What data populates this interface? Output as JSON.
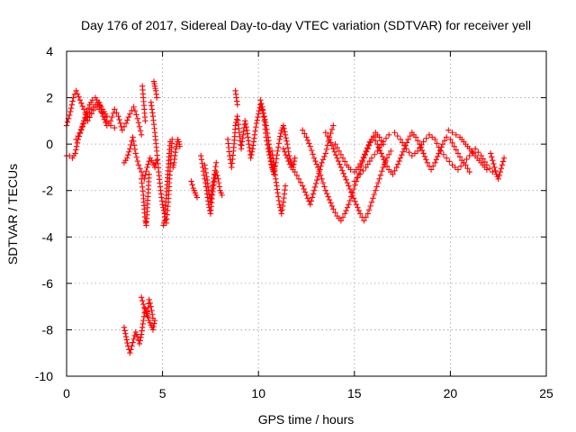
{
  "chart_data": {
    "type": "scatter",
    "title": "Day 176 of 2017, Sidereal Day-to-day VTEC variation (SDTVAR) for receiver yell",
    "xlabel": "GPS time / hours",
    "ylabel": "SDTVAR / TECUs",
    "xlim": [
      0,
      25
    ],
    "ylim": [
      -10,
      4
    ],
    "xticks": [
      0,
      5,
      10,
      15,
      20,
      25
    ],
    "yticks": [
      -10,
      -8,
      -6,
      -4,
      -2,
      0,
      2,
      4
    ],
    "grid": true,
    "marker": "+",
    "color": "#ff0000",
    "series": [
      {
        "name": "SDTVAR",
        "segments": [
          {
            "x": [
              0.0,
              0.2,
              0.35,
              0.5,
              0.7,
              0.9,
              1.1,
              1.3,
              1.5,
              1.7,
              1.9,
              2.1,
              2.3,
              2.5,
              2.7,
              2.9,
              3.1,
              3.3,
              3.5,
              3.7,
              3.9
            ],
            "y": [
              0.8,
              1.4,
              2.0,
              2.3,
              1.9,
              1.5,
              1.0,
              1.3,
              1.6,
              1.8,
              1.2,
              0.8,
              1.0,
              1.5,
              1.2,
              0.6,
              0.9,
              1.3,
              1.6,
              1.1,
              0.4
            ]
          },
          {
            "x": [
              0.0,
              0.15,
              0.3,
              0.45,
              0.6,
              0.75,
              0.9,
              1.05,
              1.2,
              1.35,
              1.5,
              1.65,
              1.8,
              1.95,
              2.1
            ],
            "y": [
              -0.5,
              -0.5,
              -0.6,
              -0.4,
              0.2,
              0.6,
              1.0,
              1.4,
              1.7,
              1.9,
              2.0,
              1.8,
              1.6,
              1.4,
              1.2
            ]
          },
          {
            "x": [
              0.5,
              0.7,
              0.9,
              1.1,
              1.3,
              1.5,
              1.7,
              1.9,
              2.1,
              2.3,
              2.5
            ],
            "y": [
              0.2,
              0.5,
              0.9,
              1.2,
              1.5,
              1.7,
              1.5,
              1.3,
              1.0,
              0.8,
              0.7
            ]
          },
          {
            "x": [
              3.0,
              3.15,
              3.3,
              3.45,
              3.6,
              3.75,
              3.9,
              4.05,
              4.2,
              4.35,
              4.5,
              4.6,
              4.7
            ],
            "y": [
              -0.8,
              -0.6,
              -0.2,
              0.3,
              -0.4,
              -0.9,
              -1.2,
              -1.5,
              -1.0,
              -0.6,
              -0.8,
              -1.0,
              -0.7
            ]
          },
          {
            "x": [
              3.9,
              4.0,
              4.05,
              4.1,
              4.15,
              4.2,
              4.25,
              4.3
            ],
            "y": [
              -1.5,
              -2.2,
              -2.8,
              -3.3,
              -3.5,
              -2.9,
              -2.1,
              -1.3
            ]
          },
          {
            "x": [
              3.95,
              4.0,
              4.05,
              4.1
            ],
            "y": [
              2.5,
              2.0,
              1.5,
              1.0
            ]
          },
          {
            "x": [
              4.4,
              4.5,
              4.6,
              4.7,
              4.8,
              4.9,
              5.0,
              5.1,
              5.2,
              5.3,
              5.4,
              5.5
            ],
            "y": [
              1.8,
              1.2,
              0.5,
              -0.3,
              -1.2,
              -2.0,
              -2.6,
              -3.0,
              -3.4,
              -2.5,
              -1.0,
              0.2
            ]
          },
          {
            "x": [
              4.55,
              4.6,
              4.65,
              4.7
            ],
            "y": [
              2.7,
              2.5,
              2.3,
              2.0
            ]
          },
          {
            "x": [
              5.05,
              5.1,
              5.15,
              5.2,
              5.25,
              5.3,
              5.35,
              5.4
            ],
            "y": [
              -3.5,
              -3.3,
              -2.8,
              -2.2,
              -1.6,
              -1.0,
              -0.4,
              0.1
            ]
          },
          {
            "x": [
              5.55,
              5.6,
              5.65,
              5.7,
              5.75,
              5.8,
              5.85,
              5.9
            ],
            "y": [
              -1.0,
              -0.8,
              -0.5,
              -0.2,
              0.0,
              0.2,
              0.1,
              -0.1
            ]
          },
          {
            "x": [
              3.0,
              3.1,
              3.2,
              3.3,
              3.4,
              3.5,
              3.6,
              3.7,
              3.8,
              3.9,
              4.0,
              4.1,
              4.2,
              4.3,
              4.4,
              4.5,
              4.6
            ],
            "y": [
              -7.9,
              -8.3,
              -8.7,
              -9.0,
              -8.7,
              -8.4,
              -8.1,
              -8.3,
              -8.6,
              -8.2,
              -7.6,
              -7.1,
              -7.3,
              -7.6,
              -7.8,
              -8.0,
              -7.6
            ]
          },
          {
            "x": [
              3.9,
              4.0,
              4.1,
              4.2,
              4.3,
              4.4,
              4.5
            ],
            "y": [
              -6.6,
              -6.9,
              -7.2,
              -7.4,
              -6.7,
              -7.0,
              -7.5
            ]
          },
          {
            "x": [
              6.5,
              6.6,
              6.7,
              6.8
            ],
            "y": [
              -1.6,
              -1.9,
              -2.1,
              -2.3
            ]
          },
          {
            "x": [
              7.0,
              7.1,
              7.2,
              7.3,
              7.4,
              7.5,
              7.6,
              7.7,
              7.8,
              7.9,
              8.0,
              8.1
            ],
            "y": [
              -0.5,
              -1.0,
              -1.5,
              -2.0,
              -2.6,
              -3.0,
              -2.2,
              -1.6,
              -1.2,
              -1.5,
              -2.0,
              -2.2
            ]
          },
          {
            "x": [
              7.2,
              7.3,
              7.4,
              7.5,
              7.6,
              7.7,
              7.8
            ],
            "y": [
              -0.9,
              -1.4,
              -2.0,
              -2.5,
              -1.8,
              -1.3,
              -0.8
            ]
          },
          {
            "x": [
              8.4,
              8.5,
              8.6,
              8.7,
              8.8,
              8.9,
              9.0,
              9.1,
              9.2,
              9.3,
              9.4,
              9.5,
              9.6,
              9.7,
              9.8,
              9.9,
              10.0,
              10.1,
              10.2,
              10.3,
              10.4,
              10.5,
              10.6,
              10.7,
              10.8,
              10.9,
              11.0,
              11.1,
              11.2,
              11.3,
              11.4,
              11.5,
              11.6,
              11.7,
              11.8,
              11.9
            ],
            "y": [
              0.2,
              -0.5,
              -1.0,
              -0.3,
              0.8,
              1.2,
              0.5,
              -0.2,
              0.4,
              1.0,
              0.6,
              0.0,
              -0.6,
              -0.2,
              0.4,
              0.9,
              1.3,
              1.7,
              1.5,
              1.0,
              0.3,
              -0.2,
              -0.6,
              -1.0,
              -1.2,
              -0.8,
              -0.3,
              0.2,
              0.6,
              0.8,
              0.4,
              0.0,
              -0.5,
              -0.8,
              -1.0,
              -0.6
            ]
          },
          {
            "x": [
              8.8,
              8.85,
              8.9
            ],
            "y": [
              2.3,
              2.0,
              1.7
            ]
          },
          {
            "x": [
              10.1,
              10.2,
              10.3,
              10.4,
              10.5,
              10.6,
              10.7,
              10.8
            ],
            "y": [
              1.9,
              1.6,
              1.2,
              0.8,
              0.3,
              -0.3,
              -0.9,
              -1.3
            ]
          },
          {
            "x": [
              10.7,
              10.8,
              10.9,
              11.0,
              11.1,
              11.2,
              11.3,
              11.4
            ],
            "y": [
              -0.3,
              -0.8,
              -1.5,
              -2.1,
              -2.6,
              -3.0,
              -2.5,
              -1.8
            ]
          },
          {
            "x": [
              11.3,
              11.5,
              11.7,
              11.9,
              12.1,
              12.3,
              12.5,
              12.7,
              12.9,
              13.1,
              13.3,
              13.5,
              13.7,
              13.9
            ],
            "y": [
              -0.2,
              -0.6,
              -1.0,
              -1.2,
              -1.5,
              -1.8,
              -2.2,
              -2.6,
              -2.0,
              -1.4,
              -0.8,
              -0.4,
              0.3,
              0.8
            ]
          },
          {
            "x": [
              12.3,
              12.5,
              12.7,
              12.9,
              13.1,
              13.3,
              13.5,
              13.7,
              13.9,
              14.1,
              14.3,
              14.5,
              14.7,
              14.9,
              15.1,
              15.3,
              15.5,
              15.7,
              15.9,
              16.1,
              16.3,
              16.5
            ],
            "y": [
              0.6,
              0.3,
              -0.1,
              -0.6,
              -1.0,
              -1.5,
              -2.0,
              -2.4,
              -2.8,
              -3.1,
              -3.3,
              -3.0,
              -2.6,
              -2.1,
              -1.6,
              -1.1,
              -0.6,
              -0.2,
              0.2,
              0.5,
              0.3,
              0.0
            ]
          },
          {
            "x": [
              13.5,
              13.7,
              13.9,
              14.1,
              14.3,
              14.5,
              14.7,
              14.9,
              15.1,
              15.3,
              15.5,
              15.7,
              15.9,
              16.1,
              16.3,
              16.5,
              16.7,
              16.9
            ],
            "y": [
              0.5,
              0.2,
              -0.2,
              -0.6,
              -1.0,
              -1.4,
              -1.8,
              -2.2,
              -2.6,
              -3.0,
              -3.3,
              -3.0,
              -2.5,
              -2.0,
              -1.5,
              -1.0,
              -0.6,
              -0.3
            ]
          },
          {
            "x": [
              14.0,
              14.2,
              14.4,
              14.6,
              14.8,
              15.0,
              15.2,
              15.4,
              15.6,
              15.8,
              16.0,
              16.2,
              16.4,
              16.6,
              16.8,
              17.0,
              17.2,
              17.4,
              17.6,
              17.8,
              18.0,
              18.2,
              18.4,
              18.6,
              18.8,
              19.0,
              19.2,
              19.4,
              19.6,
              19.8,
              20.0,
              20.2,
              20.4,
              20.6,
              20.8,
              21.0
            ],
            "y": [
              0.0,
              -0.3,
              -0.6,
              -0.9,
              -1.1,
              -1.2,
              -1.0,
              -0.7,
              -0.3,
              0.1,
              0.3,
              0.0,
              -0.4,
              -0.8,
              -1.1,
              -1.3,
              -1.0,
              -0.6,
              -0.2,
              0.2,
              0.5,
              0.3,
              0.0,
              -0.4,
              -0.8,
              -1.1,
              -0.8,
              -0.4,
              0.0,
              0.3,
              0.2,
              -0.1,
              -0.4,
              -0.7,
              -0.9,
              -1.2
            ]
          },
          {
            "x": [
              15.0,
              15.3,
              15.6,
              15.9,
              16.2,
              16.5,
              16.8,
              17.1,
              17.4,
              17.7,
              18.0,
              18.3,
              18.6,
              18.9,
              19.2,
              19.5,
              19.8,
              20.1,
              20.4,
              20.7,
              21.0,
              21.3,
              21.6,
              21.9,
              22.2
            ],
            "y": [
              -1.6,
              -1.3,
              -1.0,
              -0.6,
              -0.3,
              0.1,
              0.4,
              0.5,
              0.2,
              -0.2,
              -0.5,
              -0.3,
              0.1,
              0.4,
              0.2,
              -0.3,
              -0.6,
              -0.9,
              -1.1,
              -0.8,
              -0.5,
              -0.2,
              -0.5,
              -0.9,
              -1.2
            ]
          },
          {
            "x": [
              19.9,
              20.1,
              20.3,
              20.5,
              20.7,
              20.9,
              21.1,
              21.3,
              21.5,
              21.7,
              21.9
            ],
            "y": [
              0.6,
              0.5,
              0.4,
              0.3,
              0.1,
              -0.1,
              -0.3,
              -0.5,
              -0.7,
              -0.9,
              -1.1
            ]
          },
          {
            "x": [
              22.1,
              22.2,
              22.3,
              22.4,
              22.5,
              22.6,
              22.7,
              22.8
            ],
            "y": [
              -0.4,
              -0.7,
              -1.0,
              -1.3,
              -1.5,
              -1.2,
              -0.9,
              -0.6
            ]
          }
        ]
      }
    ]
  }
}
